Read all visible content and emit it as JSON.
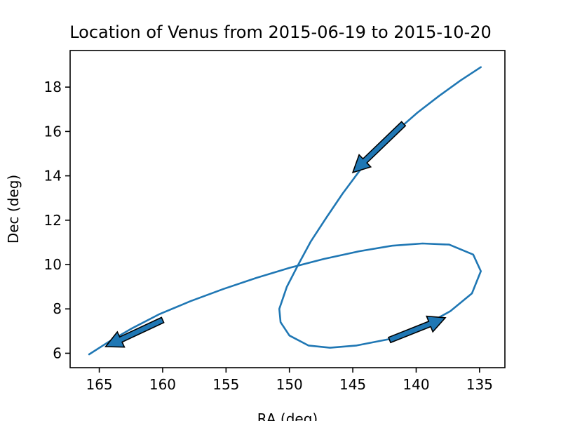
{
  "chart_data": {
    "type": "line",
    "title": "Location of Venus from 2015-06-19 to 2015-10-20",
    "xlabel": "RA (deg)",
    "ylabel": "Dec (deg)",
    "xlim": [
      167.3,
      133.0
    ],
    "ylim": [
      5.35,
      19.65
    ],
    "x_inverted": true,
    "xticks": [
      165,
      160,
      155,
      150,
      145,
      140,
      135
    ],
    "yticks": [
      6,
      8,
      10,
      12,
      14,
      16,
      18
    ],
    "grid": false,
    "legend": "none",
    "series": [
      {
        "color": "#1f77b4",
        "points": [
          [
            134.9,
            18.9
          ],
          [
            136.5,
            18.3
          ],
          [
            138.2,
            17.6
          ],
          [
            139.9,
            16.85
          ],
          [
            141.5,
            16.05
          ],
          [
            143.0,
            15.2
          ],
          [
            144.5,
            14.2
          ],
          [
            145.8,
            13.2
          ],
          [
            147.1,
            12.1
          ],
          [
            148.3,
            11.05
          ],
          [
            149.3,
            10.0
          ],
          [
            150.2,
            9.0
          ],
          [
            150.8,
            8.0
          ],
          [
            150.7,
            7.4
          ],
          [
            150.0,
            6.8
          ],
          [
            148.5,
            6.35
          ],
          [
            146.8,
            6.25
          ],
          [
            144.7,
            6.35
          ],
          [
            142.0,
            6.65
          ],
          [
            139.5,
            7.2
          ],
          [
            137.3,
            7.9
          ],
          [
            135.6,
            8.7
          ],
          [
            134.9,
            9.7
          ],
          [
            135.5,
            10.45
          ],
          [
            137.4,
            10.9
          ],
          [
            139.5,
            10.95
          ],
          [
            141.9,
            10.85
          ],
          [
            144.5,
            10.6
          ],
          [
            147.3,
            10.25
          ],
          [
            150.0,
            9.85
          ],
          [
            152.6,
            9.4
          ],
          [
            155.2,
            8.9
          ],
          [
            157.8,
            8.35
          ],
          [
            160.3,
            7.75
          ],
          [
            162.5,
            7.1
          ],
          [
            164.3,
            6.5
          ],
          [
            165.8,
            5.95
          ]
        ]
      }
    ],
    "annotations": [
      {
        "type": "arrow",
        "from": [
          141.0,
          16.35
        ],
        "to": [
          145.0,
          14.15
        ]
      },
      {
        "type": "arrow",
        "from": [
          142.1,
          6.6
        ],
        "to": [
          137.7,
          7.6
        ]
      },
      {
        "type": "arrow",
        "from": [
          160.0,
          7.5
        ],
        "to": [
          164.5,
          6.3
        ]
      }
    ]
  }
}
